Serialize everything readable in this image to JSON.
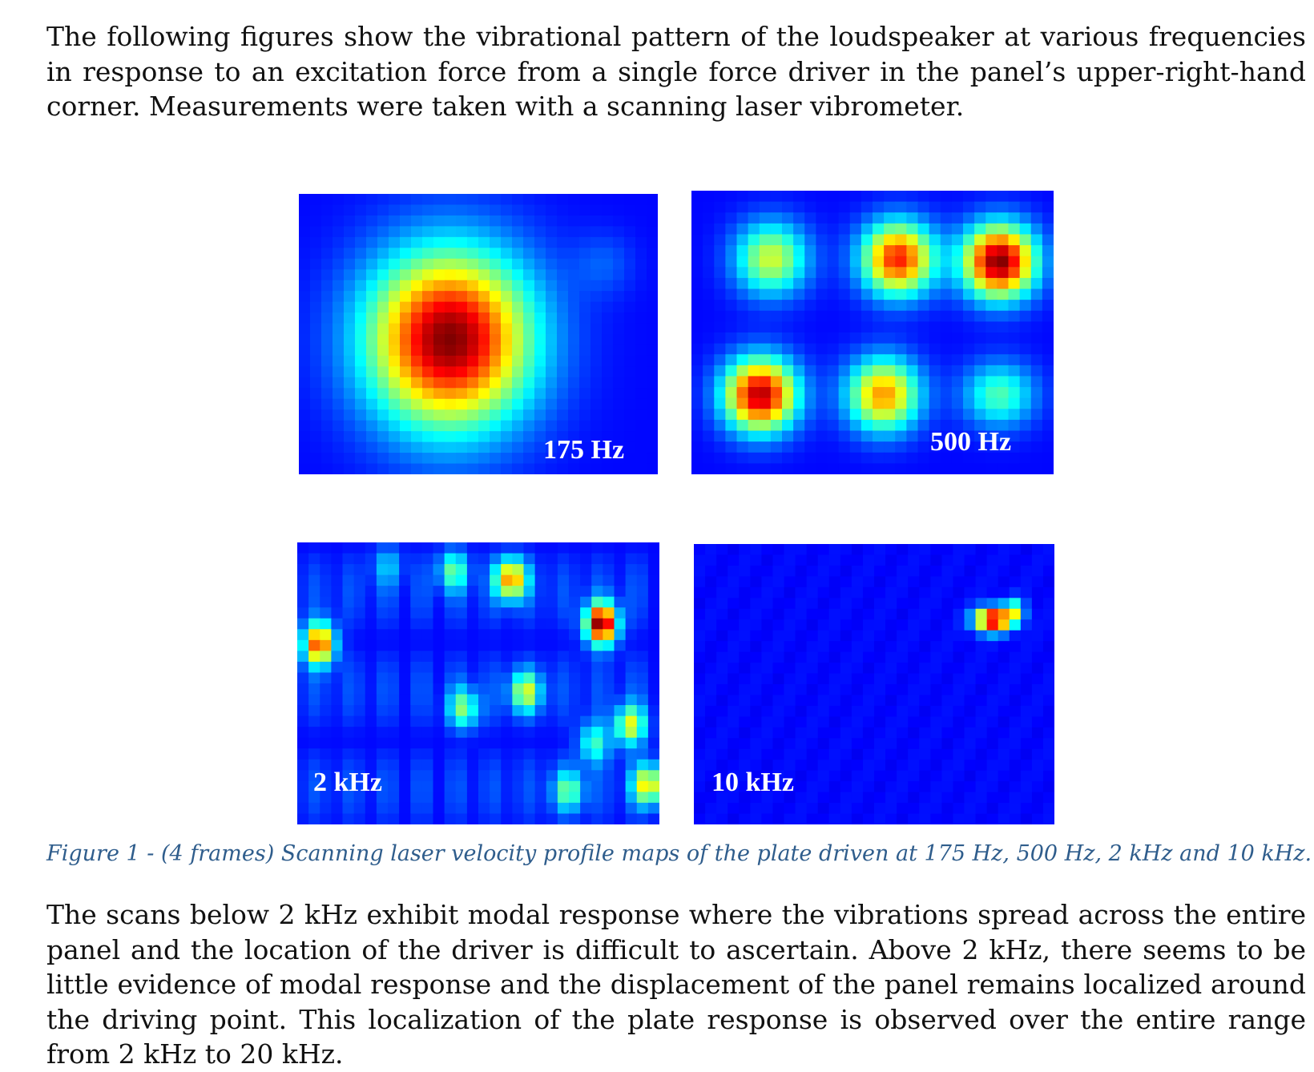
{
  "intro_text": "The following figures show the vibrational pattern of the loudspeaker at various frequencies in response to an excitation force from a single force driver in the panel’s upper-right-hand corner. Measurements were taken with a scanning laser vibrometer.",
  "figure": {
    "panels": [
      {
        "id": "p175",
        "label": "175 Hz"
      },
      {
        "id": "p500",
        "label": "500 Hz"
      },
      {
        "id": "p2k",
        "label": "2 kHz"
      },
      {
        "id": "p10k",
        "label": "10 kHz"
      }
    ],
    "colormap": [
      "#00008b",
      "#0000ff",
      "#0080ff",
      "#00ffff",
      "#80ff80",
      "#ffff00",
      "#ff8000",
      "#ff0000",
      "#800000"
    ],
    "caption": "Figure 1 - (4 frames) Scanning laser velocity profile maps of the plate driven at 175 Hz, 500 Hz, 2 kHz and 10 kHz."
  },
  "outro_text": "The scans below 2 kHz exhibit modal response where the vibrations spread across the entire panel and the location of the driver is difficult to ascertain. Above 2 kHz, there seems to be little evidence of modal response and the displacement of the panel remains localized around the driving point. This localization of the plate response is observed over the entire range from 2 kHz to 20 kHz."
}
